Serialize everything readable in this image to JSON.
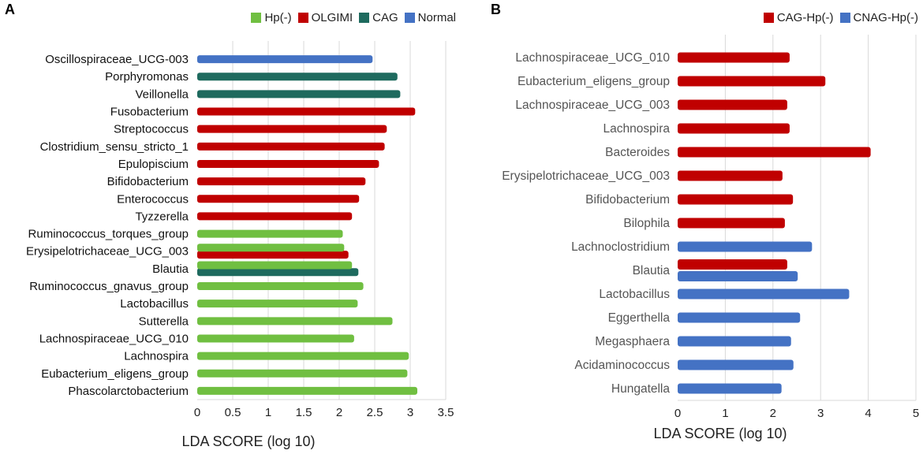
{
  "panels": {
    "a": "A",
    "b": "B"
  },
  "chart_data": [
    {
      "type": "bar",
      "orientation": "horizontal",
      "panel": "A",
      "xlabel": "LDA SCORE (log 10)",
      "xlim": [
        0,
        3.5
      ],
      "xticks": [
        "0",
        "0.5",
        "1",
        "1.5",
        "2",
        "2.5",
        "3",
        "3.5"
      ],
      "xtick_values": [
        0,
        0.5,
        1,
        1.5,
        2,
        2.5,
        3,
        3.5
      ],
      "grid": true,
      "legend_position": "top-right",
      "legend": [
        {
          "name": "Hp(-)",
          "color": "#70bf41"
        },
        {
          "name": "OLGIMI",
          "color": "#c00000"
        },
        {
          "name": "CAG",
          "color": "#1e6a5e"
        },
        {
          "name": "Normal",
          "color": "#4472c4"
        }
      ],
      "categories": [
        "Oscillospiraceae_UCG-003",
        "Porphyromonas",
        "Veillonella",
        "Fusobacterium",
        "Streptococcus",
        "Clostridium_sensu_stricto_1",
        "Epulopiscium",
        "Bifidobacterium",
        "Enterococcus",
        "Tyzzerella",
        "Ruminococcus_torques_group",
        "Erysipelotrichaceae_UCG_003",
        "Blautia",
        "Ruminococcus_gnavus_group",
        "Lactobacillus",
        "Sutterella",
        "Lachnospiraceae_UCG_010",
        "Lachnospira",
        "Eubacterium_eligens_group",
        "Phascolarctobacterium"
      ],
      "bars": [
        {
          "group": "Normal",
          "value": 2.47,
          "row": 0,
          "offset": 0
        },
        {
          "group": "CAG",
          "value": 2.82,
          "row": 1,
          "offset": 0
        },
        {
          "group": "CAG",
          "value": 2.86,
          "row": 2,
          "offset": 0
        },
        {
          "group": "OLGIMI",
          "value": 3.07,
          "row": 3,
          "offset": 0
        },
        {
          "group": "OLGIMI",
          "value": 2.67,
          "row": 4,
          "offset": 0
        },
        {
          "group": "OLGIMI",
          "value": 2.64,
          "row": 5,
          "offset": 0
        },
        {
          "group": "OLGIMI",
          "value": 2.56,
          "row": 6,
          "offset": 0
        },
        {
          "group": "OLGIMI",
          "value": 2.37,
          "row": 7,
          "offset": 0
        },
        {
          "group": "OLGIMI",
          "value": 2.28,
          "row": 8,
          "offset": 0
        },
        {
          "group": "OLGIMI",
          "value": 2.18,
          "row": 9,
          "offset": 0
        },
        {
          "group": "Hp(-)",
          "value": 2.05,
          "row": 10,
          "offset": 0
        },
        {
          "group": "OLGIMI",
          "value": 2.13,
          "row": 11,
          "offset": 0.2
        },
        {
          "group": "Hp(-)",
          "value": 2.07,
          "row": 11,
          "offset": -0.2
        },
        {
          "group": "CAG",
          "value": 2.27,
          "row": 12,
          "offset": 0.2
        },
        {
          "group": "Hp(-)",
          "value": 2.18,
          "row": 12,
          "offset": -0.2
        },
        {
          "group": "Hp(-)",
          "value": 2.34,
          "row": 13,
          "offset": 0
        },
        {
          "group": "Hp(-)",
          "value": 2.26,
          "row": 14,
          "offset": 0
        },
        {
          "group": "Hp(-)",
          "value": 2.75,
          "row": 15,
          "offset": 0
        },
        {
          "group": "Hp(-)",
          "value": 2.21,
          "row": 16,
          "offset": 0
        },
        {
          "group": "Hp(-)",
          "value": 2.98,
          "row": 17,
          "offset": 0
        },
        {
          "group": "Hp(-)",
          "value": 2.96,
          "row": 18,
          "offset": 0
        },
        {
          "group": "Hp(-)",
          "value": 3.1,
          "row": 19,
          "offset": 0
        }
      ]
    },
    {
      "type": "bar",
      "orientation": "horizontal",
      "panel": "B",
      "xlabel": "LDA SCORE (log 10)",
      "xlim": [
        0,
        5
      ],
      "xticks": [
        "0",
        "1",
        "2",
        "3",
        "4",
        "5"
      ],
      "xtick_values": [
        0,
        1,
        2,
        3,
        4,
        5
      ],
      "grid": true,
      "legend_position": "top-right",
      "legend": [
        {
          "name": "CAG-Hp(-)",
          "color": "#c00000"
        },
        {
          "name": "CNAG-Hp(-)",
          "color": "#4472c4"
        }
      ],
      "categories": [
        "Lachnospiraceae_UCG_010",
        "Eubacterium_eligens_group",
        "Lachnospiraceae_UCG_003",
        "Lachnospira",
        "Bacteroides",
        "Erysipelotrichaceae_UCG_003",
        "Bifidobacterium",
        "Bilophila",
        "Lachnoclostridium",
        "Blautia",
        "Lactobacillus",
        "Eggerthella",
        "Megasphaera",
        "Acidaminococcus",
        "Hungatella"
      ],
      "bars": [
        {
          "group": "CAG-Hp(-)",
          "value": 2.35,
          "row": 0,
          "offset": 0
        },
        {
          "group": "CAG-Hp(-)",
          "value": 3.1,
          "row": 1,
          "offset": 0
        },
        {
          "group": "CAG-Hp(-)",
          "value": 2.3,
          "row": 2,
          "offset": 0
        },
        {
          "group": "CAG-Hp(-)",
          "value": 2.35,
          "row": 3,
          "offset": 0
        },
        {
          "group": "CAG-Hp(-)",
          "value": 4.05,
          "row": 4,
          "offset": 0
        },
        {
          "group": "CAG-Hp(-)",
          "value": 2.2,
          "row": 5,
          "offset": 0
        },
        {
          "group": "CAG-Hp(-)",
          "value": 2.42,
          "row": 6,
          "offset": 0
        },
        {
          "group": "CAG-Hp(-)",
          "value": 2.25,
          "row": 7,
          "offset": 0
        },
        {
          "group": "CNAG-Hp(-)",
          "value": 2.82,
          "row": 8,
          "offset": 0
        },
        {
          "group": "CAG-Hp(-)",
          "value": 2.3,
          "row": 9,
          "offset": -0.25
        },
        {
          "group": "CNAG-Hp(-)",
          "value": 2.52,
          "row": 9,
          "offset": 0.25
        },
        {
          "group": "CNAG-Hp(-)",
          "value": 3.6,
          "row": 10,
          "offset": 0
        },
        {
          "group": "CNAG-Hp(-)",
          "value": 2.57,
          "row": 11,
          "offset": 0
        },
        {
          "group": "CNAG-Hp(-)",
          "value": 2.38,
          "row": 12,
          "offset": 0
        },
        {
          "group": "CNAG-Hp(-)",
          "value": 2.43,
          "row": 13,
          "offset": 0
        },
        {
          "group": "CNAG-Hp(-)",
          "value": 2.18,
          "row": 14,
          "offset": 0
        }
      ]
    }
  ]
}
